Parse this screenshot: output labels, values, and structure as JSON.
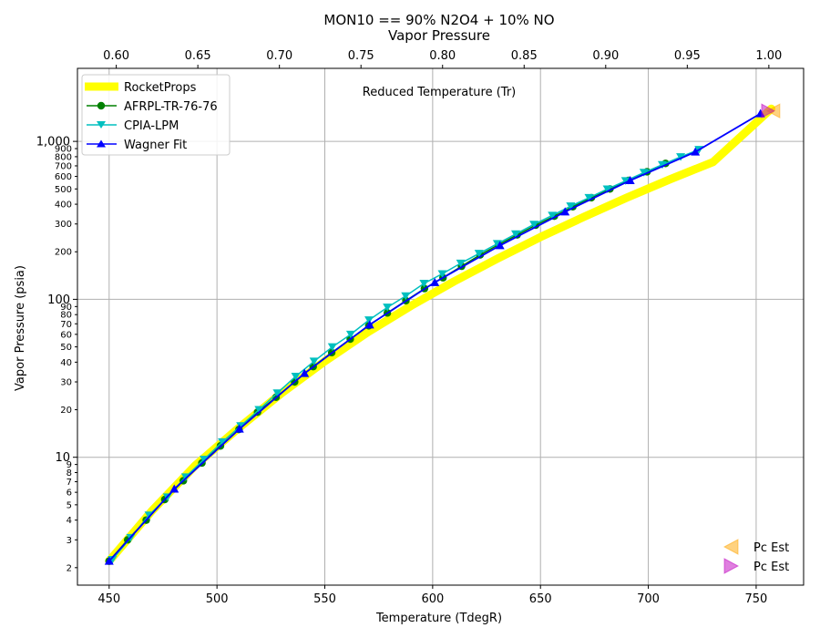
{
  "chart_data": {
    "type": "line",
    "title": "MON10 == 90% N2O4 + 10% NO",
    "subtitle": "Vapor Pressure",
    "xlabel": "Temperature (TdegR)",
    "ylabel": "Vapor Pressure (psia)",
    "x2label": "Reduced Temperature (Tr)",
    "xlim": [
      435.3,
      772
    ],
    "ylim": [
      1.55,
      2900
    ],
    "yscale": "log",
    "x2lim": [
      0.5762,
      1.0213
    ],
    "grid": true,
    "legend_position": "top-left",
    "legend2_position": "bottom-right",
    "xticks": [
      450,
      500,
      550,
      600,
      650,
      700,
      750
    ],
    "x2ticks": [
      0.6,
      0.65,
      0.7,
      0.75,
      0.8,
      0.85,
      0.9,
      0.95,
      1.0
    ],
    "yticks_major": [
      10,
      100,
      1000
    ],
    "yticks_major_labels": [
      "10",
      "100",
      "1,000"
    ],
    "yticks_minor": [
      2,
      3,
      4,
      5,
      6,
      7,
      8,
      9,
      20,
      30,
      40,
      50,
      60,
      70,
      80,
      90,
      200,
      300,
      400,
      500,
      600,
      700,
      800,
      900
    ],
    "yticks_minor_labels": [
      "2",
      "3",
      "4",
      "5",
      "6",
      "7",
      "8",
      "9",
      "20",
      "30",
      "40",
      "50",
      "60",
      "70",
      "80",
      "90",
      "200",
      "300",
      "400",
      "500",
      "600",
      "700",
      "800",
      "900"
    ],
    "colors": {
      "rocketprops": "#ffff00",
      "afrpl": "#008000",
      "cpia": "#00bfbf",
      "wagner": "#0000ff",
      "pc_left": "#ffa500",
      "pc_right": "#bf00bf",
      "grid": "#b0b0b0"
    },
    "series": [
      {
        "name": "RocketProps",
        "marker": "none",
        "x": [
          450,
          470,
          490,
          510,
          530,
          550,
          570,
          590,
          610,
          630,
          650,
          670,
          690,
          710,
          730,
          757
        ],
        "y": [
          2.2,
          4.6,
          8.9,
          15.3,
          25.5,
          40.5,
          62,
          91,
          130,
          181,
          248,
          332,
          440,
          575,
          740,
          1610
        ]
      },
      {
        "name": "AFRPL-TR-76-76",
        "marker": "circle",
        "x": [
          450,
          458.6,
          467.2,
          475.8,
          484.4,
          493,
          501.6,
          510.2,
          518.8,
          527.4,
          536,
          544.6,
          553.2,
          561.8,
          570.4,
          579,
          587.6,
          596.2,
          604.8,
          613.4,
          622,
          630.6,
          639.2,
          647.8,
          656.4,
          665,
          673.6,
          682.2,
          690.8,
          699.4,
          708
        ],
        "y": [
          2.2,
          3.0,
          4.0,
          5.4,
          7.1,
          9.2,
          11.8,
          15.0,
          19.3,
          24.0,
          30.0,
          37.5,
          46,
          56,
          68,
          82,
          98,
          117,
          137,
          162,
          191,
          222,
          256,
          295,
          336,
          386,
          440,
          500,
          566,
          642,
          725
        ]
      },
      {
        "name": "CPIA-LPM",
        "marker": "triangle-down",
        "x": [
          451.5,
          460,
          468.5,
          477,
          485.5,
          494,
          502.5,
          511,
          519.5,
          528,
          536.5,
          545,
          553.5,
          562,
          570.5,
          579,
          587.5,
          596,
          604.5,
          613,
          621.5,
          630,
          638.5,
          647,
          655.5,
          664,
          672.5,
          681,
          689.5,
          698,
          706.5,
          715,
          723.5
        ],
        "y": [
          2.25,
          3.1,
          4.3,
          5.6,
          7.5,
          9.7,
          12.5,
          15.8,
          20.0,
          25.5,
          32.5,
          40.5,
          50,
          60,
          74,
          89,
          105,
          126,
          145,
          169,
          195,
          225,
          259,
          298,
          340,
          389,
          440,
          499,
          563,
          635,
          712,
          798,
          888
        ]
      },
      {
        "name": "Wagner Fit",
        "marker": "triangle-up",
        "x": [
          450,
          480.2,
          510.4,
          540.6,
          570.8,
          601,
          631.2,
          661.4,
          691.6,
          721.8,
          752
        ],
        "y": [
          2.2,
          6.3,
          15.1,
          34,
          69,
          128,
          219,
          358,
          566,
          858,
          1500
        ]
      },
      {
        "name": "Pc Est",
        "marker": "triangle-left",
        "x": [
          758
        ],
        "y": [
          1560
        ]
      },
      {
        "name": "Pc Est",
        "marker": "triangle-right",
        "x": [
          755.5
        ],
        "y": [
          1560
        ]
      }
    ]
  }
}
